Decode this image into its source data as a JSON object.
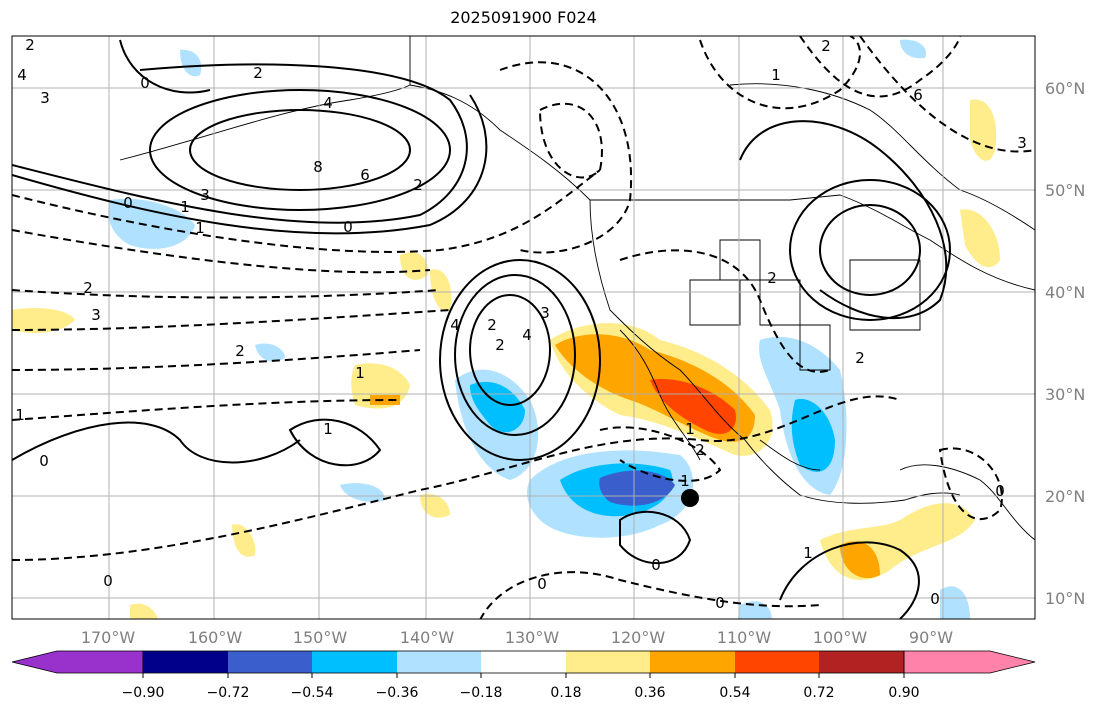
{
  "title": "2025091900 F024",
  "lon_ticks": [
    "170°W",
    "160°W",
    "150°W",
    "140°W",
    "130°W",
    "120°W",
    "110°W",
    "100°W",
    "90°W"
  ],
  "lat_ticks": [
    "60°N",
    "50°N",
    "40°N",
    "30°N",
    "20°N",
    "10°N"
  ],
  "colorbar": {
    "labels": [
      "−0.90",
      "−0.72",
      "−0.54",
      "−0.36",
      "−0.18",
      "0.18",
      "0.36",
      "0.54",
      "0.72",
      "0.90"
    ],
    "colors": [
      "#9932cc",
      "#00008b",
      "#3a5fcd",
      "#00bfff",
      "#b0e2ff",
      "#ffffff",
      "#ffec8b",
      "#ffa500",
      "#ff4500",
      "#b22222",
      "#ff82ab"
    ]
  },
  "contour_labels": [
    "2",
    "0",
    "3",
    "4",
    "2",
    "4",
    "8",
    "6",
    "2",
    "0",
    "1",
    "3",
    "0",
    "1",
    "2",
    "1",
    "2",
    "4",
    "4",
    "3",
    "2",
    "1",
    "1",
    "0",
    "2",
    "3",
    "1",
    "0",
    "0",
    "0",
    "2",
    "2",
    "0",
    "1",
    "0",
    "0",
    "1",
    "2",
    "1",
    "2",
    "6",
    "3"
  ]
}
